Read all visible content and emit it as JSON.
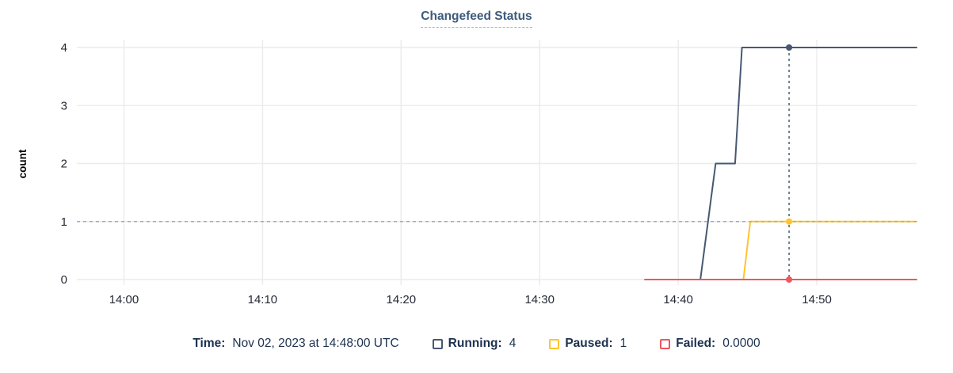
{
  "title": "Changefeed Status",
  "axes": {
    "ylabel": "count",
    "yticks": [
      "0",
      "1",
      "2",
      "3",
      "4"
    ],
    "xticks": [
      "14:00",
      "14:10",
      "14:20",
      "14:30",
      "14:40",
      "14:50"
    ]
  },
  "legend": {
    "time_label": "Time:",
    "time_value": "Nov 02, 2023 at 14:48:00 UTC",
    "items": [
      {
        "label": "Running:",
        "value": "4",
        "color": "#475872"
      },
      {
        "label": "Paused:",
        "value": "1",
        "color": "#ffc42e"
      },
      {
        "label": "Failed:",
        "value": "0.0000",
        "color": "#f0565f"
      }
    ]
  },
  "colors": {
    "running_line": "#475872",
    "paused_line": "#ffc42e",
    "failed_line": "#f0565f",
    "gridline": "#ececee",
    "reference_dash": "#9fadb5",
    "hover_dash": "#44606e",
    "tick_text": "#242a35"
  },
  "chart_data": {
    "type": "line",
    "title": "Changefeed Status",
    "xlabel": "",
    "ylabel": "count",
    "x_unit": "minutes after 14:00 UTC on Nov 02, 2023",
    "xlim": [
      -3.4,
      57.2
    ],
    "ylim": [
      0,
      4
    ],
    "grid": true,
    "legend_position": "bottom",
    "xticks": [
      {
        "m": 0,
        "label": "14:00"
      },
      {
        "m": 10,
        "label": "14:10"
      },
      {
        "m": 20,
        "label": "14:20"
      },
      {
        "m": 30,
        "label": "14:30"
      },
      {
        "m": 40,
        "label": "14:40"
      },
      {
        "m": 50,
        "label": "14:50"
      }
    ],
    "yticks": [
      0,
      1,
      2,
      3,
      4
    ],
    "series": [
      {
        "name": "Running",
        "color": "#475872",
        "points": [
          [
            37.6,
            0
          ],
          [
            41.6,
            0
          ],
          [
            42.7,
            2
          ],
          [
            44.1,
            2
          ],
          [
            44.6,
            4
          ],
          [
            57.2,
            4
          ]
        ]
      },
      {
        "name": "Paused",
        "color": "#ffc42e",
        "points": [
          [
            37.6,
            0
          ],
          [
            44.7,
            0
          ],
          [
            45.2,
            1
          ],
          [
            57.2,
            1
          ]
        ]
      },
      {
        "name": "Failed",
        "color": "#f0565f",
        "points": [
          [
            37.6,
            0
          ],
          [
            57.2,
            0
          ]
        ]
      }
    ],
    "reference_line_y": 1,
    "hover": {
      "x_minutes": 48,
      "time": "Nov 02, 2023 at 14:48:00 UTC",
      "values": {
        "Running": 4,
        "Paused": 1,
        "Failed": 0
      }
    }
  }
}
